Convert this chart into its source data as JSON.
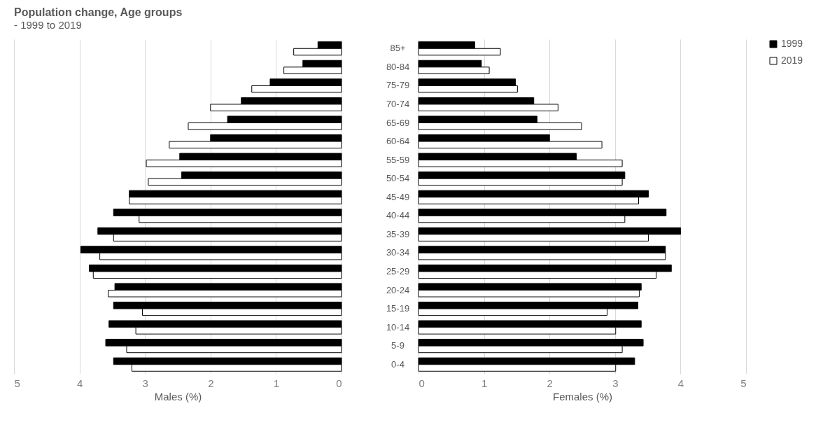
{
  "chart_data": [
    {
      "type": "bar",
      "orientation": "horizontal",
      "title": "Population change, Age groups",
      "subtitle": "- 1999 to 2019",
      "xlabel": "Males (%)",
      "series": [
        {
          "name": "1999",
          "color": "#000000",
          "values": [
            0.36,
            0.59,
            1.09,
            1.53,
            1.74,
            2.0,
            2.47,
            2.44,
            3.24,
            3.48,
            3.72,
            3.98,
            3.85,
            3.46,
            3.48,
            3.55,
            3.6,
            3.48
          ]
        },
        {
          "name": "2019",
          "color": "#ffffff",
          "values": [
            0.73,
            0.88,
            1.37,
            2.0,
            2.34,
            2.63,
            2.98,
            2.95,
            3.24,
            3.09,
            3.48,
            3.69,
            3.79,
            3.56,
            3.04,
            3.14,
            3.28,
            3.2
          ]
        }
      ],
      "xlim": [
        5,
        0
      ],
      "xticks": [
        5,
        4,
        3,
        2,
        1,
        0
      ],
      "grid": "x",
      "tick_labels": "x",
      "legend": "top right"
    },
    {
      "type": "bar",
      "orientation": "horizontal",
      "xlabel": "Females (%)",
      "categories": [
        "85+",
        "80-84",
        "75-79",
        "70-74",
        "65-69",
        "60-64",
        "55-59",
        "50-54",
        "45-49",
        "40-44",
        "35-39",
        "30-34",
        "25-29",
        "20-24",
        "15-19",
        "10-14",
        "5-9",
        "0-4"
      ],
      "series": [
        {
          "name": "1999",
          "color": "#000000",
          "values": [
            0.86,
            0.96,
            1.48,
            1.76,
            1.81,
            2.0,
            2.41,
            3.15,
            3.51,
            3.78,
            4.0,
            3.77,
            3.86,
            3.4,
            3.35,
            3.4,
            3.43,
            3.3
          ]
        },
        {
          "name": "2019",
          "color": "#ffffff",
          "values": [
            1.25,
            1.08,
            1.51,
            2.13,
            2.49,
            2.8,
            3.11,
            3.11,
            3.36,
            3.15,
            3.51,
            3.77,
            3.63,
            3.37,
            2.88,
            3.01,
            3.11,
            3.01
          ]
        }
      ],
      "xlim": [
        0,
        5
      ],
      "xticks": [
        0,
        1,
        2,
        3,
        4,
        5
      ],
      "grid": "x",
      "legend": "top right"
    }
  ]
}
